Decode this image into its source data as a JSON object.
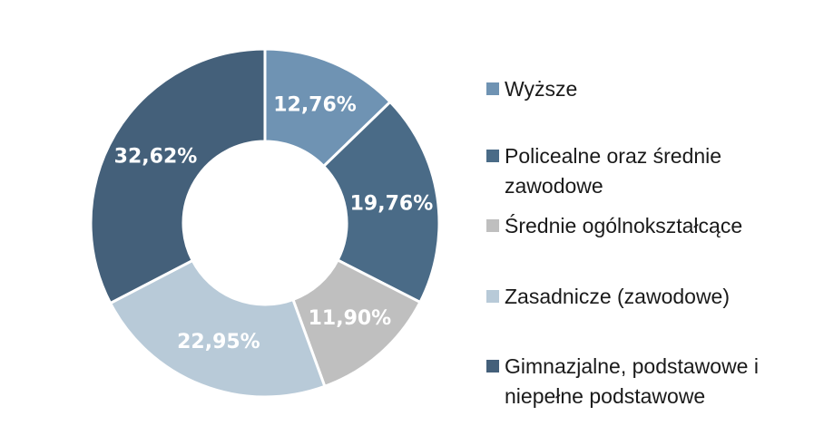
{
  "chart_data": {
    "type": "pie",
    "style": "donut",
    "categories": [
      "Wyższe",
      "Policealne oraz średnie zawodowe",
      "Średnie ogólnokształcące",
      "Zasadnicze (zawodowe)",
      "Gimnazjalne, podstawowe i niepełne podstawowe"
    ],
    "values": [
      12.76,
      19.76,
      11.9,
      22.95,
      32.62
    ],
    "labels": [
      "12,76%",
      "19,76%",
      "11,90%",
      "22,95%",
      "32,62%"
    ],
    "colors": [
      "#6f93b3",
      "#4a6b87",
      "#bfbfbf",
      "#b8cad8",
      "#44607a"
    ],
    "label_colors": [
      "#ffffff",
      "#ffffff",
      "#ffffff",
      "#ffffff",
      "#ffffff"
    ],
    "legend_position": "right",
    "title": ""
  },
  "legend": {
    "items": [
      "Wyższe",
      "Policealne oraz średnie zawodowe",
      "Średnie ogólnokształcące",
      "Zasadnicze (zawodowe)",
      "Gimnazjalne, podstawowe i niepełne podstawowe"
    ]
  }
}
